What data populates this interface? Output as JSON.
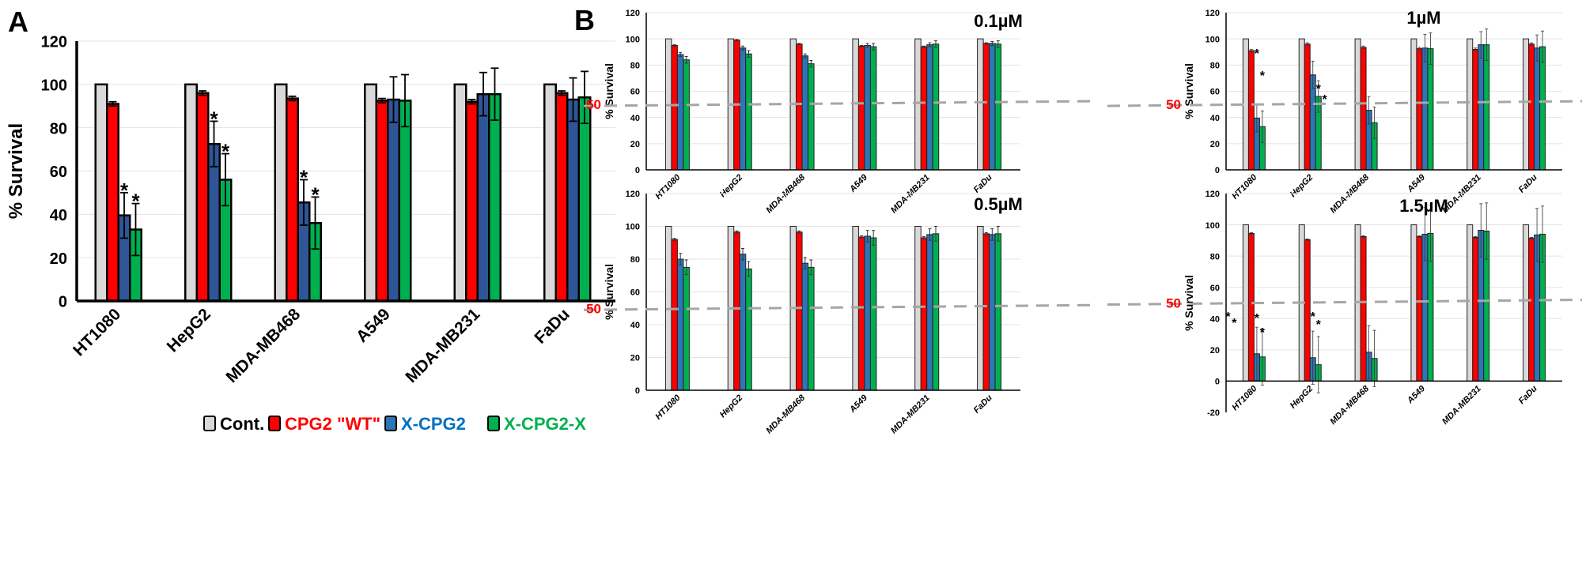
{
  "panel_labels": {
    "a": "A",
    "b": "B"
  },
  "colors": {
    "cont": "#d9d9d9",
    "wt": "#ff0000",
    "xcpg2_a": "#2f5597",
    "xcpg2_b": "#2e75b6",
    "xcpg2x": "#00b050",
    "ref_line": "#a6a6a6",
    "ref_label": "#ff0000"
  },
  "legend": [
    {
      "label": "Cont.",
      "color": "#d9d9d9",
      "text_color": "#000000"
    },
    {
      "label": "CPG2 \"WT\"",
      "color": "#ff0000",
      "text_color": "#ff0000"
    },
    {
      "label": "X-CPG2",
      "color": "#2e75b6",
      "text_color": "#0070c0"
    },
    {
      "label": "X-CPG2-X",
      "color": "#00b050",
      "text_color": "#00b050"
    }
  ],
  "chart_data": [
    {
      "panel": "A",
      "type": "bar",
      "title": "",
      "ylabel": "% Survival",
      "xlabel": "",
      "ylim": [
        0,
        120
      ],
      "yticks": [
        0,
        20,
        40,
        60,
        80,
        100,
        120
      ],
      "grid": true,
      "categories": [
        "HT1080",
        "HepG2",
        "MDA-MB468",
        "A549",
        "MDA-MB231",
        "FaDu"
      ],
      "series": [
        {
          "values": [
            100,
            100,
            100,
            100,
            100,
            100
          ],
          "errors": [
            0,
            0,
            0,
            0,
            0,
            0
          ]
        },
        {
          "values": [
            91,
            96,
            93.5,
            92.5,
            92,
            96
          ],
          "errors": [
            1,
            1,
            1,
            1,
            1,
            1
          ]
        },
        {
          "values": [
            39.5,
            72.5,
            45.5,
            93,
            95.5,
            93
          ],
          "errors": [
            10.5,
            10.5,
            10.5,
            10.5,
            10,
            10
          ]
        },
        {
          "values": [
            33,
            56,
            36,
            92.5,
            95.5,
            94
          ],
          "errors": [
            12,
            12,
            12,
            12,
            12,
            12
          ]
        }
      ],
      "annotations": [
        {
          "category": 0,
          "series": 2,
          "y": 53,
          "text": "*"
        },
        {
          "category": 0,
          "series": 3,
          "y": 48,
          "text": "*"
        },
        {
          "category": 1,
          "series": 2,
          "y": 86,
          "text": "*"
        },
        {
          "category": 1,
          "series": 3,
          "y": 71,
          "text": "*"
        },
        {
          "category": 2,
          "series": 2,
          "y": 59,
          "text": "*"
        },
        {
          "category": 2,
          "series": 3,
          "y": 51,
          "text": "*"
        }
      ]
    },
    {
      "panel": "B1",
      "type": "bar",
      "title": "0.1µM",
      "ylabel": "% Survival",
      "ylim": [
        0,
        120
      ],
      "yticks": [
        0,
        20,
        40,
        60,
        80,
        100,
        120
      ],
      "grid": true,
      "reference_line": {
        "value": 50,
        "label": "50"
      },
      "categories": [
        "HT1080",
        "HepG2",
        "MDA-MB468",
        "A549",
        "MDA-MB231",
        "FaDu"
      ],
      "series": [
        {
          "values": [
            100,
            100,
            100,
            100,
            100,
            100
          ],
          "errors": [
            0,
            0,
            0,
            0,
            0,
            0
          ]
        },
        {
          "values": [
            95,
            99,
            96,
            94.5,
            94,
            96.5
          ],
          "errors": [
            0.5,
            0.5,
            0.5,
            0.5,
            0.5,
            0.5
          ]
        },
        {
          "values": [
            88,
            93,
            87,
            95,
            95.5,
            96.5
          ],
          "errors": [
            1.5,
            1.5,
            1.5,
            1.5,
            1.5,
            1.5
          ]
        },
        {
          "values": [
            84,
            88.5,
            81,
            94,
            96,
            96
          ],
          "errors": [
            2.5,
            2.5,
            2.5,
            2.5,
            2.5,
            2.5
          ]
        }
      ],
      "annotations": []
    },
    {
      "panel": "B2",
      "type": "bar",
      "title": "1µM",
      "ylabel": "% Survival",
      "ylim": [
        0,
        120
      ],
      "yticks": [
        0,
        20,
        40,
        60,
        80,
        100,
        120
      ],
      "grid": true,
      "reference_line": {
        "value": 50,
        "label": "50"
      },
      "categories": [
        "HT1080",
        "HepG2",
        "MDA-MB468",
        "A549",
        "MDA-MB231",
        "FaDu"
      ],
      "series": [
        {
          "values": [
            100,
            100,
            100,
            100,
            100,
            100
          ],
          "errors": [
            0,
            0,
            0,
            0,
            0,
            0
          ]
        },
        {
          "values": [
            91,
            96,
            93.5,
            92.5,
            92,
            96
          ],
          "errors": [
            1,
            1,
            1,
            1,
            1,
            1
          ]
        },
        {
          "values": [
            39.5,
            72.5,
            45.5,
            93,
            95.5,
            93
          ],
          "errors": [
            10.5,
            10.5,
            10.5,
            10.5,
            10,
            10
          ]
        },
        {
          "values": [
            33,
            56,
            36,
            92.5,
            95.5,
            94
          ],
          "errors": [
            12,
            12,
            12,
            12,
            12,
            12
          ]
        }
      ],
      "annotations": [
        {
          "category": 0,
          "series": 2,
          "y": 91,
          "text": "*"
        },
        {
          "category": 0,
          "series": 3,
          "y": 74,
          "text": "*"
        },
        {
          "category": 1,
          "series": 3,
          "y": 64,
          "text": "*"
        },
        {
          "category": 1,
          "series": 3.7,
          "y": 56,
          "text": "*"
        }
      ]
    },
    {
      "panel": "B3",
      "type": "bar",
      "title": "0.5µM",
      "ylabel": "% Survival",
      "ylim": [
        0,
        120
      ],
      "yticks": [
        0,
        20,
        40,
        60,
        80,
        100,
        120
      ],
      "grid": true,
      "reference_line": {
        "value": 50,
        "label": "50"
      },
      "categories": [
        "HT1080",
        "HepG2",
        "MDA-MB468",
        "A549",
        "MDA-MB231",
        "FaDu"
      ],
      "series": [
        {
          "values": [
            100,
            100,
            100,
            100,
            100,
            100
          ],
          "errors": [
            0,
            0,
            0,
            0,
            0,
            0
          ]
        },
        {
          "values": [
            92,
            96.5,
            96.5,
            93.5,
            93,
            95.5
          ],
          "errors": [
            0.7,
            0.7,
            0.7,
            0.7,
            0.7,
            0.7
          ]
        },
        {
          "values": [
            80,
            83,
            77.5,
            94,
            95,
            95
          ],
          "errors": [
            3.5,
            3.5,
            3.5,
            3.5,
            3.5,
            3.5
          ]
        },
        {
          "values": [
            75,
            74,
            75,
            93,
            95.5,
            95.5
          ],
          "errors": [
            4.5,
            4.5,
            4.5,
            4.5,
            4.5,
            4.5
          ]
        }
      ],
      "annotations": []
    },
    {
      "panel": "B4",
      "type": "bar",
      "title": "1.5µM",
      "ylabel": "% Survival",
      "ylim": [
        -20,
        120
      ],
      "yticks": [
        -20,
        0,
        20,
        40,
        60,
        80,
        100,
        120
      ],
      "grid": true,
      "reference_line": {
        "value": 50,
        "label": "50"
      },
      "categories": [
        "HT1080",
        "HepG2",
        "MDA-MB468",
        "A549",
        "MDA-MB231",
        "FaDu"
      ],
      "series": [
        {
          "values": [
            100,
            100,
            100,
            100,
            100,
            100
          ],
          "errors": [
            0,
            0,
            0,
            0,
            0,
            0
          ]
        },
        {
          "values": [
            94.5,
            90.5,
            92.5,
            92.5,
            92,
            91.5
          ],
          "errors": [
            0.5,
            0.5,
            0.5,
            0.5,
            0.5,
            0.5
          ]
        },
        {
          "values": [
            17.5,
            15,
            18.5,
            94,
            96.5,
            93.5
          ],
          "errors": [
            17,
            17,
            17,
            17,
            17,
            17
          ]
        },
        {
          "values": [
            15.5,
            10.5,
            14.5,
            94.5,
            96,
            94
          ],
          "errors": [
            18,
            18,
            18,
            18,
            18,
            18
          ]
        }
      ],
      "annotations": [
        {
          "category": 0,
          "series": -3.2,
          "y": 43,
          "text": "*"
        },
        {
          "category": 0,
          "series": -2.5,
          "y": 39,
          "text": "*"
        },
        {
          "category": 0,
          "series": 2,
          "y": 42,
          "text": "*"
        },
        {
          "category": 0,
          "series": 3,
          "y": 33,
          "text": "*"
        },
        {
          "category": 1,
          "series": 2,
          "y": 43,
          "text": "*"
        },
        {
          "category": 1,
          "series": 3,
          "y": 38,
          "text": "*"
        }
      ]
    }
  ]
}
